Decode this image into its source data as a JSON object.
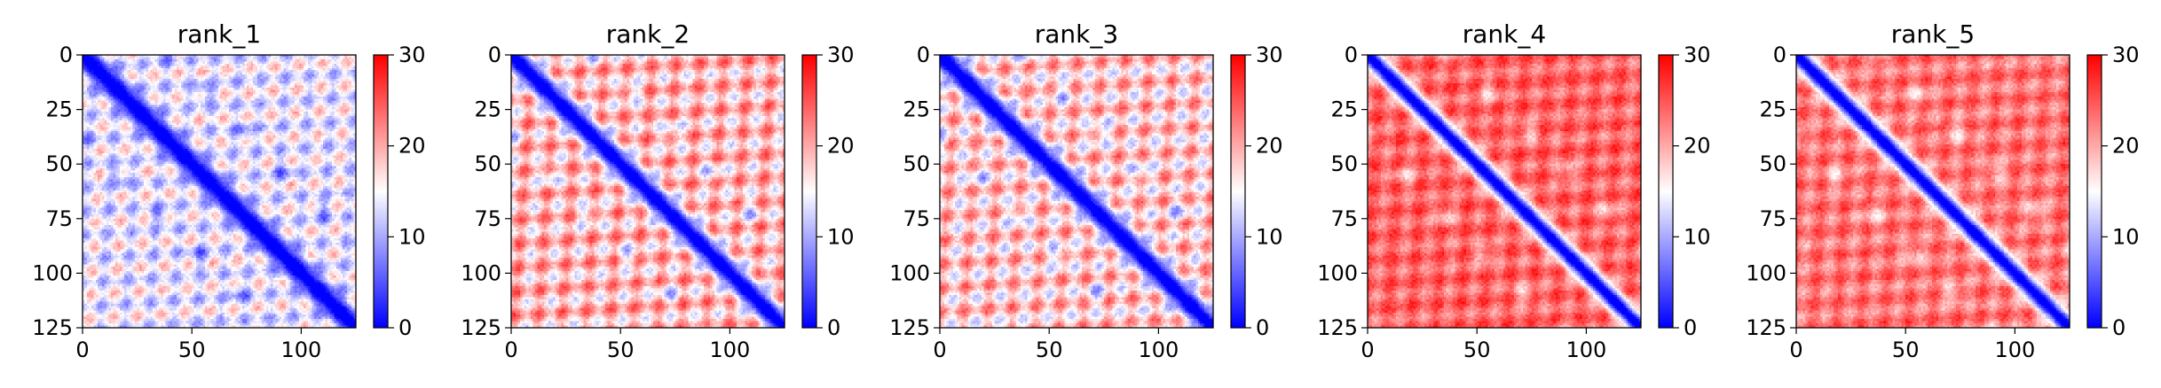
{
  "chart_data": [
    {
      "type": "heatmap",
      "title": "rank_1",
      "xlim": [
        0,
        125
      ],
      "ylim": [
        125,
        0
      ],
      "xticks": [
        "0",
        "50",
        "100"
      ],
      "yticks": [
        "0",
        "25",
        "50",
        "75",
        "100",
        "125"
      ],
      "colorbar": {
        "min": 0,
        "max": 30,
        "ticks": [
          "0",
          "10",
          "20",
          "30"
        ],
        "colormap": "bwr",
        "colors": [
          "#0000ff",
          "#ffffff",
          "#ff0000"
        ]
      },
      "background_level": 14,
      "diagonal_width": 5,
      "patch_strength": 6
    },
    {
      "type": "heatmap",
      "title": "rank_2",
      "xlim": [
        0,
        125
      ],
      "ylim": [
        125,
        0
      ],
      "xticks": [
        "0",
        "50",
        "100"
      ],
      "yticks": [
        "0",
        "25",
        "50",
        "75",
        "100",
        "125"
      ],
      "colorbar": {
        "min": 0,
        "max": 30,
        "ticks": [
          "0",
          "10",
          "20",
          "30"
        ],
        "colormap": "bwr",
        "colors": [
          "#0000ff",
          "#ffffff",
          "#ff0000"
        ]
      },
      "background_level": 19,
      "diagonal_width": 5,
      "patch_strength": 7
    },
    {
      "type": "heatmap",
      "title": "rank_3",
      "xlim": [
        0,
        125
      ],
      "ylim": [
        125,
        0
      ],
      "xticks": [
        "0",
        "50",
        "100"
      ],
      "yticks": [
        "0",
        "25",
        "50",
        "75",
        "100",
        "125"
      ],
      "colorbar": {
        "min": 0,
        "max": 30,
        "ticks": [
          "0",
          "10",
          "20",
          "30"
        ],
        "colormap": "bwr",
        "colors": [
          "#0000ff",
          "#ffffff",
          "#ff0000"
        ]
      },
      "background_level": 18,
      "diagonal_width": 5,
      "patch_strength": 7
    },
    {
      "type": "heatmap",
      "title": "rank_4",
      "xlim": [
        0,
        125
      ],
      "ylim": [
        125,
        0
      ],
      "xticks": [
        "0",
        "50",
        "100"
      ],
      "yticks": [
        "0",
        "25",
        "50",
        "75",
        "100",
        "125"
      ],
      "colorbar": {
        "min": 0,
        "max": 30,
        "ticks": [
          "0",
          "10",
          "20",
          "30"
        ],
        "colormap": "bwr",
        "colors": [
          "#0000ff",
          "#ffffff",
          "#ff0000"
        ]
      },
      "background_level": 24,
      "diagonal_width": 4,
      "patch_strength": 4
    },
    {
      "type": "heatmap",
      "title": "rank_5",
      "xlim": [
        0,
        125
      ],
      "ylim": [
        125,
        0
      ],
      "xticks": [
        "0",
        "50",
        "100"
      ],
      "yticks": [
        "0",
        "25",
        "50",
        "75",
        "100",
        "125"
      ],
      "colorbar": {
        "min": 0,
        "max": 30,
        "ticks": [
          "0",
          "10",
          "20",
          "30"
        ],
        "colormap": "bwr",
        "colors": [
          "#0000ff",
          "#ffffff",
          "#ff0000"
        ]
      },
      "background_level": 23,
      "diagonal_width": 4,
      "patch_strength": 4
    }
  ]
}
